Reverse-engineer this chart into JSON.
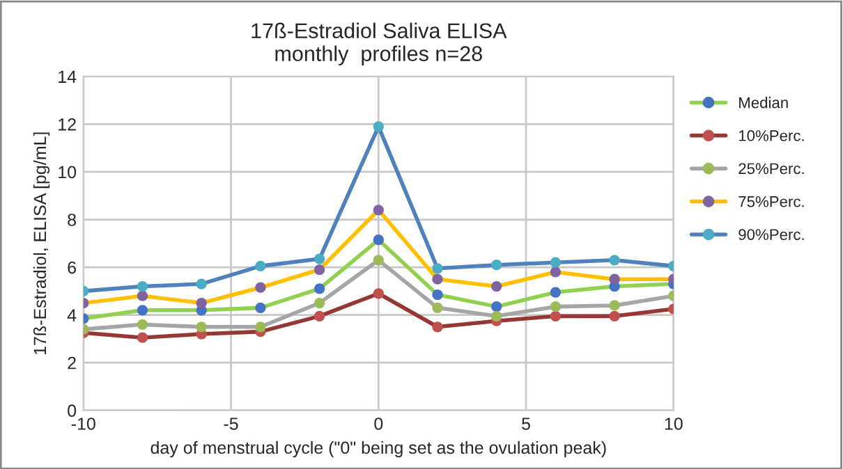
{
  "chart_data": {
    "type": "line",
    "title": "17ß-Estradiol Saliva ELISA\nmonthly  profiles n=28",
    "xlabel": "day of menstrual cycle (\"0\" being set as the ovulation peak)",
    "ylabel": "17ß-Estradiol, ELISA [pg/mL]",
    "x": [
      -10,
      -8,
      -6,
      -4,
      -2,
      0,
      2,
      4,
      6,
      8,
      10
    ],
    "series": [
      {
        "name": "Median",
        "color": "#92d050",
        "colors": [
          "#4472c4",
          "#4472c4",
          "#4472c4",
          "#4472c4",
          "#4472c4",
          "#4472c4",
          "#4472c4",
          "#4472c4",
          "#4472c4",
          "#4472c4",
          "#4472c4"
        ],
        "values": [
          3.85,
          4.2,
          4.2,
          4.3,
          5.1,
          7.15,
          4.85,
          4.35,
          4.95,
          5.2,
          5.3
        ]
      },
      {
        "name": "10%Perc.",
        "color": "#953735",
        "colors": [
          "#c0504d",
          "#c0504d",
          "#c0504d",
          "#c0504d",
          "#c0504d",
          "#c0504d",
          "#c0504d",
          "#c0504d",
          "#c0504d",
          "#c0504d",
          "#c0504d"
        ],
        "values": [
          3.25,
          3.05,
          3.2,
          3.3,
          3.95,
          4.9,
          3.5,
          3.75,
          3.95,
          3.95,
          4.25
        ]
      },
      {
        "name": "25%Perc.",
        "color": "#a5a5a5",
        "colors": [
          "#9bbb59",
          "#9bbb59",
          "#9bbb59",
          "#9bbb59",
          "#9bbb59",
          "#9bbb59",
          "#9bbb59",
          "#9bbb59",
          "#9bbb59",
          "#9bbb59",
          "#9bbb59"
        ],
        "values": [
          3.4,
          3.6,
          3.5,
          3.5,
          4.5,
          6.3,
          4.3,
          3.95,
          4.35,
          4.4,
          4.8
        ]
      },
      {
        "name": "75%Perc.",
        "color": "#ffc000",
        "colors": [
          "#8064a2",
          "#8064a2",
          "#8064a2",
          "#8064a2",
          "#8064a2",
          "#8064a2",
          "#8064a2",
          "#8064a2",
          "#8064a2",
          "#8064a2",
          "#8064a2"
        ],
        "values": [
          4.5,
          4.8,
          4.5,
          5.15,
          5.9,
          8.4,
          5.5,
          5.2,
          5.8,
          5.5,
          5.5
        ]
      },
      {
        "name": "90%Perc.",
        "color": "#4f81bd",
        "colors": [
          "#4bacc6",
          "#4bacc6",
          "#4bacc6",
          "#4bacc6",
          "#4bacc6",
          "#4bacc6",
          "#4bacc6",
          "#4bacc6",
          "#4bacc6",
          "#4bacc6",
          "#4bacc6"
        ],
        "values": [
          5.0,
          5.2,
          5.3,
          6.05,
          6.35,
          11.9,
          5.95,
          6.1,
          6.2,
          6.3,
          6.05
        ]
      }
    ],
    "xlim": [
      -10,
      10
    ],
    "xticks": [
      -10,
      -5,
      0,
      5,
      10
    ],
    "ylim": [
      0,
      14
    ],
    "yticks": [
      0,
      2,
      4,
      6,
      8,
      10,
      12,
      14
    ],
    "grid": true,
    "legend": "right",
    "marker": "circle",
    "line_style": "solid"
  }
}
